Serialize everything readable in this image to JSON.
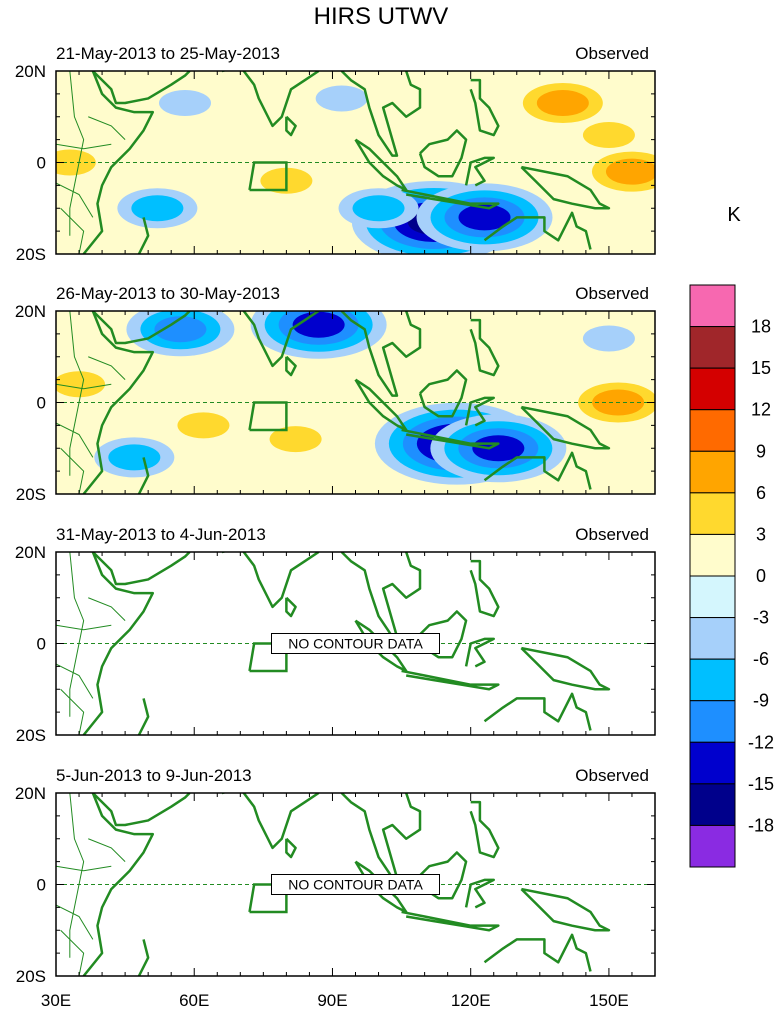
{
  "title": "HIRS UTWV",
  "colorbar": {
    "unit": "K",
    "levels": [
      "18",
      "15",
      "12",
      "9",
      "6",
      "3",
      "0",
      "-3",
      "-6",
      "-9",
      "-12",
      "-15",
      "-18"
    ],
    "colors": [
      "#f768b0",
      "#a0262a",
      "#d40000",
      "#ff6a00",
      "#ffa500",
      "#ffd92e",
      "#fffccc",
      "#d4f6fd",
      "#a6d0fa",
      "#00bfff",
      "#1e8fff",
      "#0000cd",
      "#00008b",
      "#8a2be2"
    ]
  },
  "colors": {
    "coast": "#228b22",
    "equator": "#228b22",
    "frame": "#000000"
  },
  "chart_data": [
    {
      "type": "heatmap",
      "subtitle_left": "21-May-2013 to 25-May-2013",
      "subtitle_right": "Observed",
      "xlim": [
        30,
        160
      ],
      "ylim": [
        -20,
        20
      ],
      "xticks": [
        "30E",
        "60E",
        "90E",
        "120E",
        "150E"
      ],
      "yticks": [
        "20N",
        "0",
        "20S"
      ],
      "has_data": true,
      "anomalies": [
        {
          "lon": 112,
          "lat": -13,
          "value": -16
        },
        {
          "lon": 123,
          "lat": -12,
          "value": -14
        },
        {
          "lon": 100,
          "lat": -10,
          "value": -7
        },
        {
          "lon": 52,
          "lat": -10,
          "value": -8
        },
        {
          "lon": 58,
          "lat": 13,
          "value": -5
        },
        {
          "lon": 92,
          "lat": 14,
          "value": -4
        },
        {
          "lon": 140,
          "lat": 13,
          "value": 8
        },
        {
          "lon": 150,
          "lat": 6,
          "value": 5
        },
        {
          "lon": 80,
          "lat": -4,
          "value": 4
        },
        {
          "lon": 155,
          "lat": -2,
          "value": 6
        },
        {
          "lon": 33,
          "lat": 0,
          "value": 4
        }
      ]
    },
    {
      "type": "heatmap",
      "subtitle_left": "26-May-2013 to 30-May-2013",
      "subtitle_right": "Observed",
      "xlim": [
        30,
        160
      ],
      "ylim": [
        -20,
        20
      ],
      "xticks": [
        "30E",
        "60E",
        "90E",
        "120E",
        "150E"
      ],
      "yticks": [
        "20N",
        "0",
        "20S"
      ],
      "has_data": true,
      "anomalies": [
        {
          "lon": 117,
          "lat": -9,
          "value": -16
        },
        {
          "lon": 126,
          "lat": -10,
          "value": -14
        },
        {
          "lon": 57,
          "lat": 16,
          "value": -11
        },
        {
          "lon": 87,
          "lat": 17,
          "value": -12
        },
        {
          "lon": 47,
          "lat": -12,
          "value": -8
        },
        {
          "lon": 62,
          "lat": -5,
          "value": 5
        },
        {
          "lon": 82,
          "lat": -8,
          "value": 5
        },
        {
          "lon": 152,
          "lat": 0,
          "value": 7
        },
        {
          "lon": 35,
          "lat": 4,
          "value": 4
        },
        {
          "lon": 150,
          "lat": 14,
          "value": -4
        }
      ]
    },
    {
      "type": "heatmap",
      "subtitle_left": "31-May-2013 to 4-Jun-2013",
      "subtitle_right": "Observed",
      "xlim": [
        30,
        160
      ],
      "ylim": [
        -20,
        20
      ],
      "xticks": [
        "30E",
        "60E",
        "90E",
        "120E",
        "150E"
      ],
      "yticks": [
        "20N",
        "0",
        "20S"
      ],
      "has_data": false,
      "no_data_label": "NO CONTOUR DATA",
      "anomalies": []
    },
    {
      "type": "heatmap",
      "subtitle_left": "5-Jun-2013 to 9-Jun-2013",
      "subtitle_right": "Observed",
      "xlim": [
        30,
        160
      ],
      "ylim": [
        -20,
        20
      ],
      "xticks": [
        "30E",
        "60E",
        "90E",
        "120E",
        "150E"
      ],
      "yticks": [
        "20N",
        "0",
        "20S"
      ],
      "has_data": false,
      "no_data_label": "NO CONTOUR DATA",
      "anomalies": []
    }
  ]
}
